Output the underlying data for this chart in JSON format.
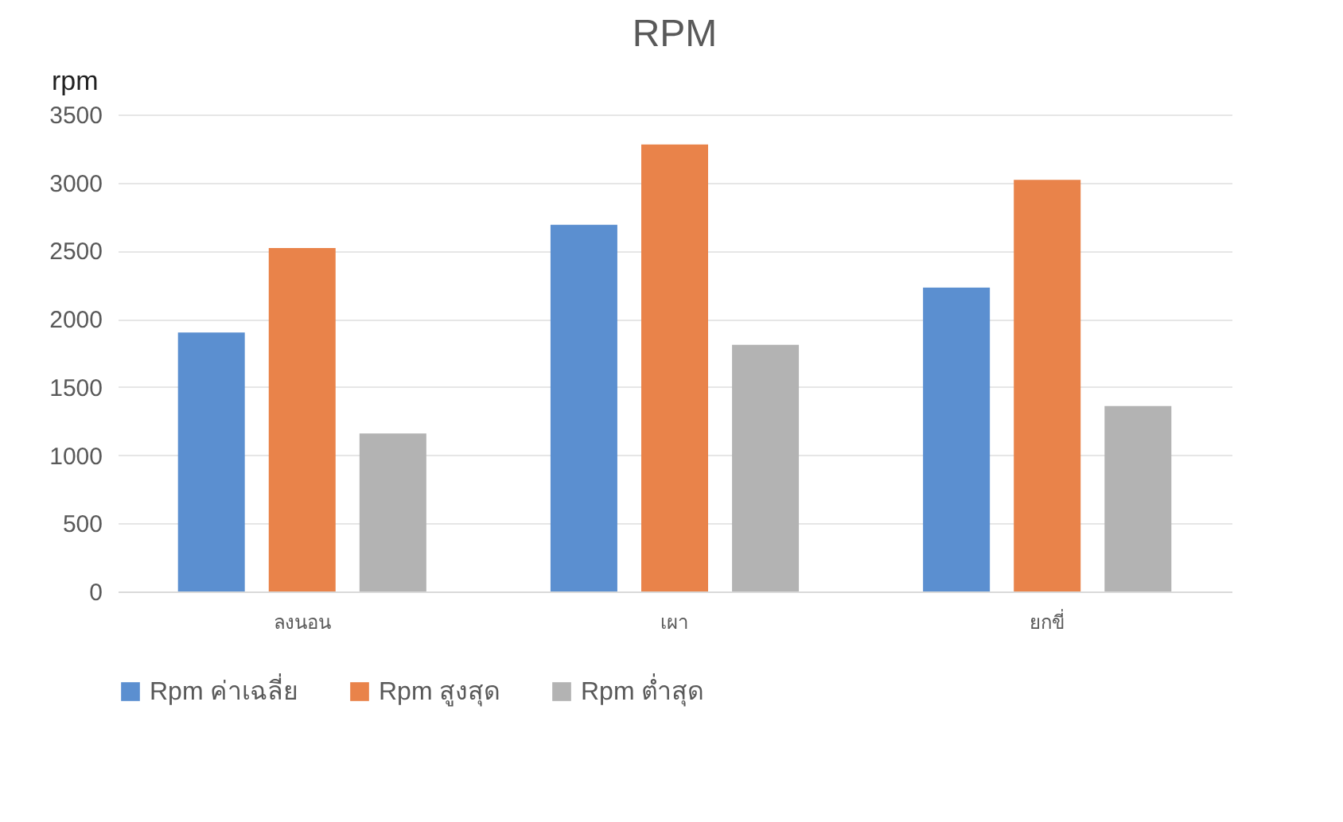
{
  "chart_data": {
    "type": "bar",
    "title": "RPM",
    "ylabel": "rpm",
    "categories": [
      "ลงนอน",
      "เผา",
      "ยกขี่"
    ],
    "series": [
      {
        "name": "Rpm ค่าเฉลี่ย",
        "color": "#5b8fd0",
        "values": [
          1900,
          2690,
          2230
        ]
      },
      {
        "name": "Rpm สูงสุด",
        "color": "#e9834a",
        "values": [
          2520,
          3280,
          3020
        ]
      },
      {
        "name": "Rpm ต่ำสุด",
        "color": "#b3b3b3",
        "values": [
          1160,
          1810,
          1360
        ]
      }
    ],
    "ylim": [
      0,
      3500
    ],
    "yticks": [
      0,
      500,
      1000,
      1500,
      2000,
      2500,
      3000,
      3500
    ],
    "grid": "y",
    "legend": "bottom"
  }
}
